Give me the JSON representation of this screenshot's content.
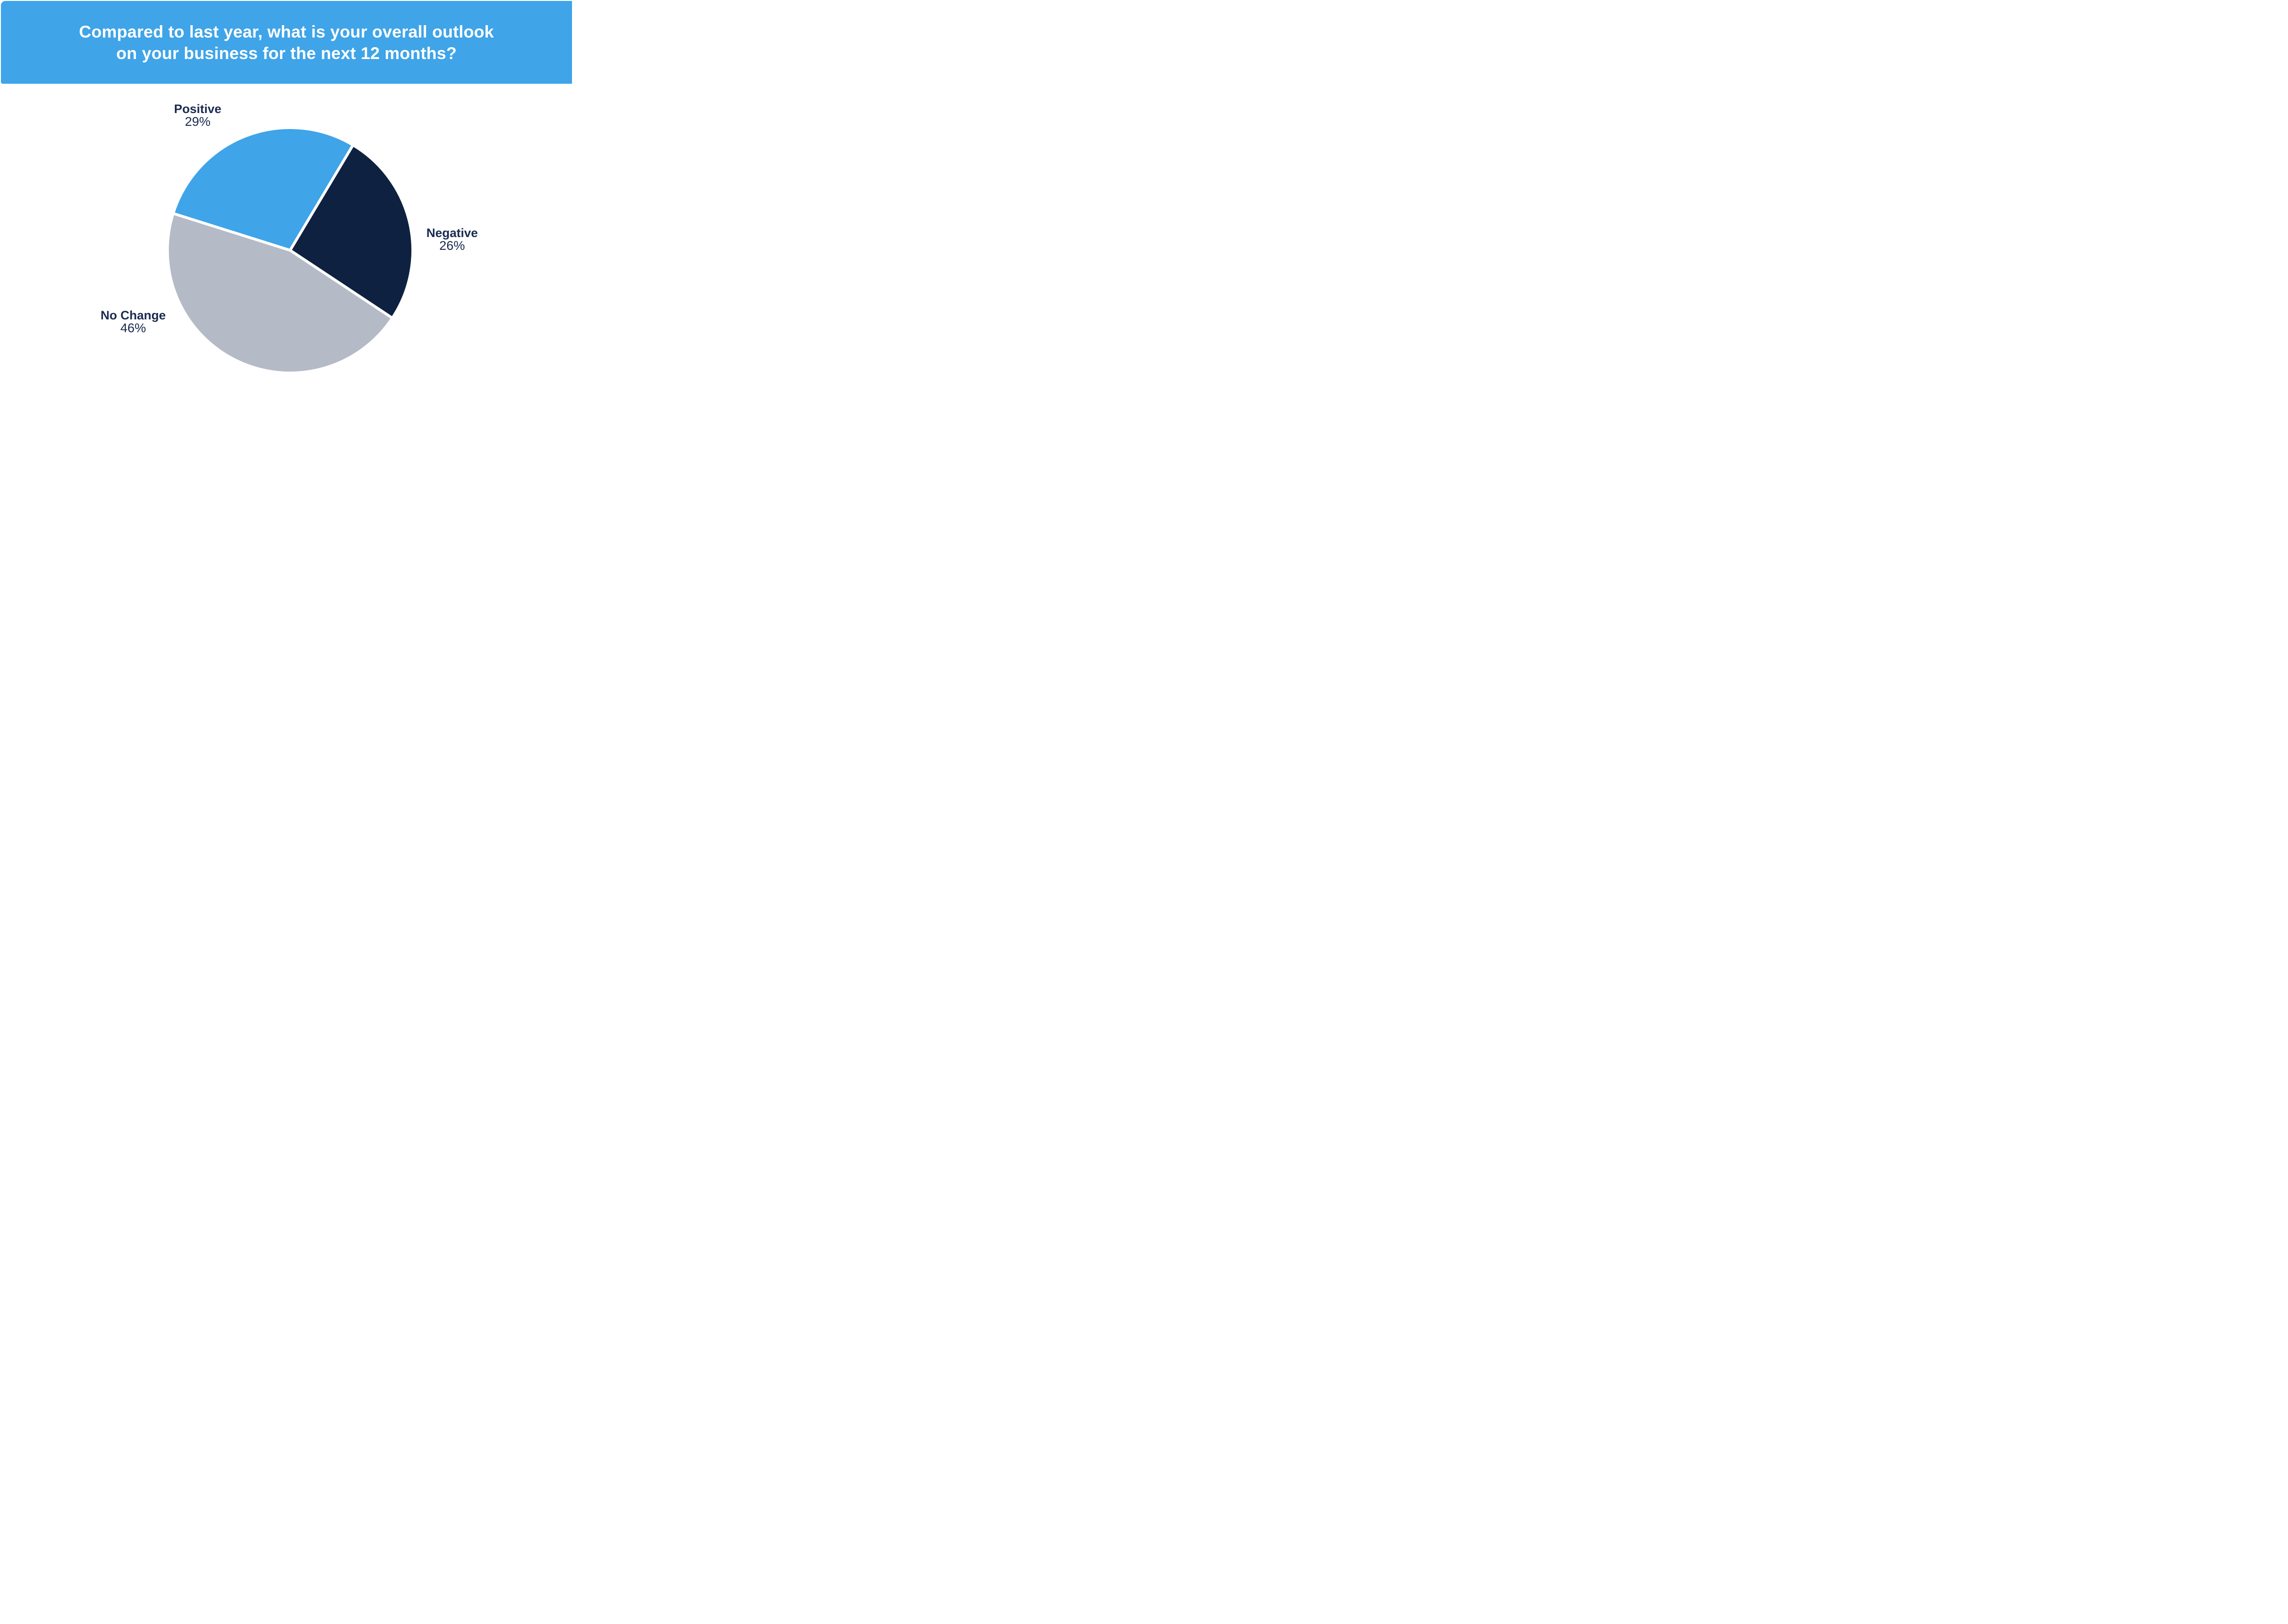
{
  "banner": {
    "title_line1": "Compared to last year, what is your overall outlook",
    "title_line2": "on your business for the next 12 months?",
    "bg_color": "#3FA4E8",
    "text_color": "#FFFFFF"
  },
  "chart_data": {
    "type": "pie",
    "title": "Compared to last year, what is your overall outlook on your business for the next 12 months?",
    "start_angle_deg": 287.5,
    "clockwise": true,
    "slice_gap_color": "#FFFFFF",
    "slice_gap_width": 6,
    "label_color": "#1B2B50",
    "legend_position": "labels-around-pie",
    "slices": [
      {
        "label": "Positive",
        "value_pct": 29,
        "display": "29%",
        "color": "#3FA4E8"
      },
      {
        "label": "Negative",
        "value_pct": 26,
        "display": "26%",
        "color": "#0E2140"
      },
      {
        "label": "No Change",
        "value_pct": 46,
        "display": "46%",
        "color": "#B4BAC6"
      }
    ]
  }
}
